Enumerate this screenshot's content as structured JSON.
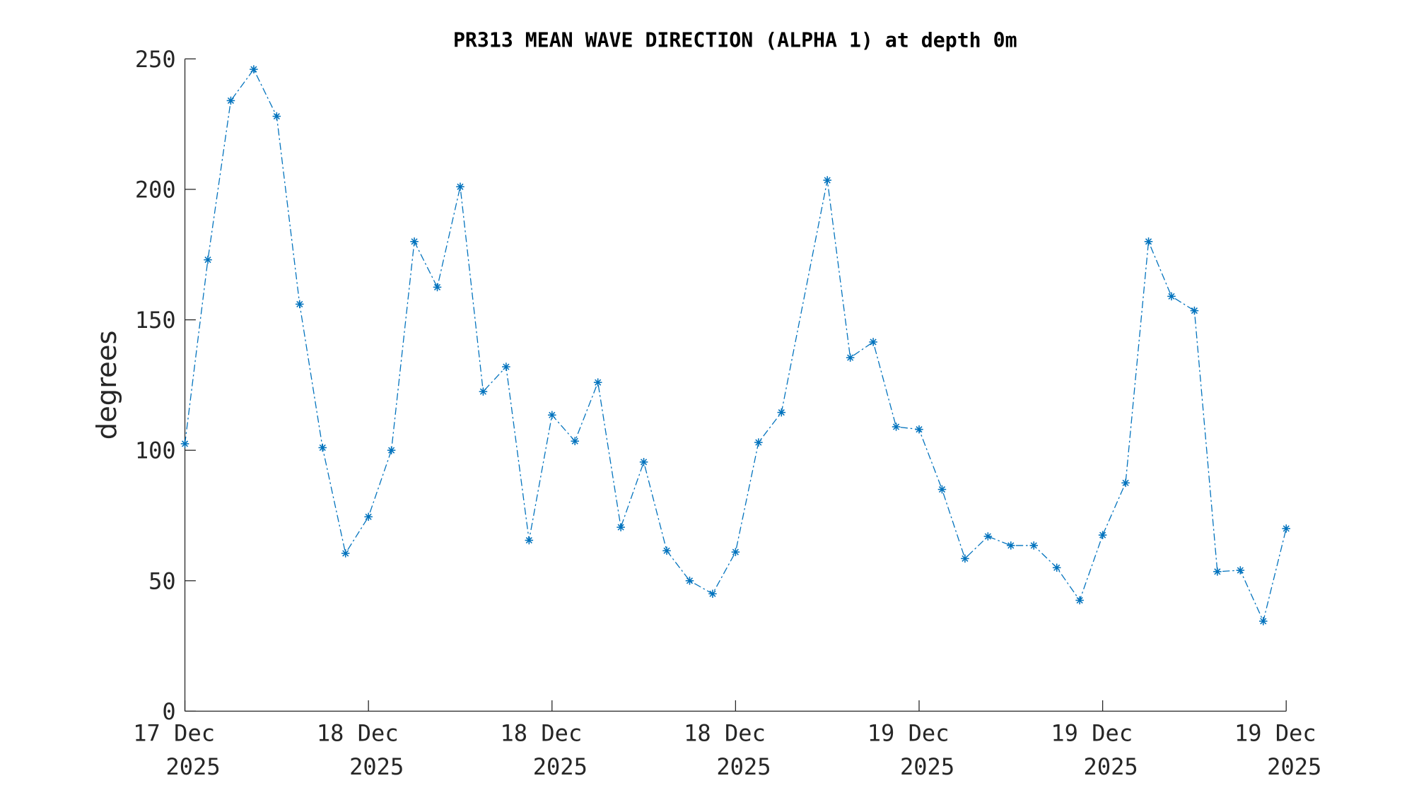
{
  "chart_data": {
    "type": "line",
    "title": "PR313 MEAN WAVE DIRECTION (ALPHA 1) at depth 0m",
    "xlabel": "",
    "ylabel": "degrees",
    "ylim": [
      0,
      250
    ],
    "yticks": [
      0,
      50,
      100,
      150,
      200,
      250
    ],
    "xlim": [
      0,
      48
    ],
    "x_unit": "hours from first sample",
    "xticks": [
      0,
      8,
      16,
      24,
      32,
      40,
      48
    ],
    "xtick_labels": [
      [
        "17 Dec",
        "2025"
      ],
      [
        "18 Dec",
        "2025"
      ],
      [
        "18 Dec",
        "2025"
      ],
      [
        "18 Dec",
        "2025"
      ],
      [
        "19 Dec",
        "2025"
      ],
      [
        "19 Dec",
        "2025"
      ],
      [
        "19 Dec",
        "2025"
      ]
    ],
    "grid": false,
    "series": [
      {
        "name": "mean wave direction",
        "color": "#0072BD",
        "marker": "asterisk",
        "line_style": "dash-dot",
        "x": [
          0,
          1,
          2,
          3,
          4,
          5,
          6,
          7,
          8,
          9,
          10,
          11,
          12,
          13,
          14,
          15,
          16,
          17,
          18,
          19,
          20,
          21,
          22,
          23,
          24,
          25,
          26,
          28,
          29,
          30,
          31,
          32,
          33,
          34,
          35,
          36,
          37,
          38,
          39,
          40,
          41,
          42,
          43,
          44,
          45,
          46,
          47,
          48
        ],
        "values": [
          102.5,
          173,
          234,
          246,
          228,
          156,
          101,
          60.5,
          74.5,
          100,
          180,
          162.5,
          201,
          122.5,
          132,
          65.5,
          113.5,
          103.5,
          126,
          70.5,
          95.5,
          61.5,
          50,
          45,
          61,
          103,
          114.5,
          203.5,
          135.5,
          141.5,
          109,
          108,
          85,
          58.5,
          67,
          63.5,
          63.5,
          55,
          42.5,
          67.5,
          87.5,
          180,
          159,
          153.5,
          53.5,
          54,
          34.5,
          70
        ]
      }
    ]
  }
}
